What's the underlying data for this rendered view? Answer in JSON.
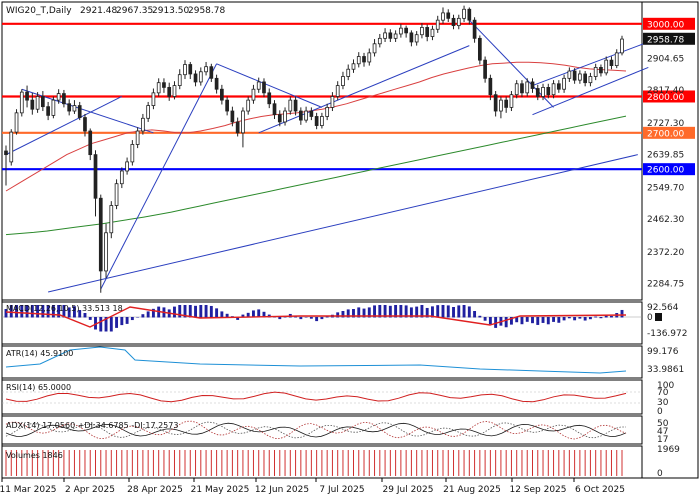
{
  "colors": {
    "bull": "#2a2a2a",
    "bear": "#2a2a2a",
    "support": "#ff0000",
    "s2700": "#ff6a2a",
    "s2600": "#0000ff",
    "ma_red": "#d94040",
    "ma_green": "#2c8a2c",
    "trend_blue": "#2b3fbf",
    "atr": "#1e90d6",
    "rsi": "#d02020",
    "adx": "#1a1a1a",
    "plus_di": "#555555",
    "minus_di": "#b03030",
    "macd_hist": "#2020a0",
    "macd_sig": "#e02020",
    "volume": "#d03030"
  },
  "chart_data": {
    "type": "candlestick",
    "title": "WIG20_T,Daily",
    "ohlc_header": {
      "open": "2921.48",
      "high": "2967.35",
      "low": "2913.50",
      "close": "2958.78"
    },
    "x_labels": [
      "11 Mar 2025",
      "2 Apr 2025",
      "28 Apr 2025",
      "21 May 2025",
      "12 Jun 2025",
      "7 Jul 2025",
      "29 Jul 2025",
      "21 Aug 2025",
      "12 Sep 2025",
      "6 Oct 2025"
    ],
    "ylim": [
      2240,
      3060
    ],
    "y_ticks": [
      "2904.65",
      "2817.40",
      "2727.30",
      "2639.85",
      "2549.70",
      "2462.30",
      "2372.20",
      "2284.75"
    ],
    "horizontal_levels": [
      {
        "label": "3000.00",
        "value": 3000,
        "color": "#ff0000"
      },
      {
        "label": "2800.00",
        "value": 2800,
        "color": "#ff0000"
      },
      {
        "label": "2700.00",
        "value": 2700,
        "color": "#ff6a2a"
      },
      {
        "label": "2600.00",
        "value": 2600,
        "color": "#0000ff"
      }
    ],
    "last_price_label": "2958.78",
    "candles": [
      [
        2650,
        2640,
        2665,
        2555
      ],
      [
        2620,
        2702,
        2710,
        2610
      ],
      [
        2702,
        2755,
        2765,
        2695
      ],
      [
        2755,
        2812,
        2820,
        2745
      ],
      [
        2812,
        2790,
        2830,
        2770
      ],
      [
        2790,
        2765,
        2810,
        2750
      ],
      [
        2765,
        2800,
        2812,
        2755
      ],
      [
        2800,
        2772,
        2815,
        2760
      ],
      [
        2772,
        2748,
        2785,
        2735
      ],
      [
        2748,
        2790,
        2800,
        2740
      ],
      [
        2790,
        2808,
        2820,
        2780
      ],
      [
        2808,
        2780,
        2818,
        2770
      ],
      [
        2780,
        2760,
        2792,
        2748
      ],
      [
        2760,
        2775,
        2790,
        2752
      ],
      [
        2775,
        2742,
        2785,
        2735
      ],
      [
        2742,
        2705,
        2752,
        2690
      ],
      [
        2705,
        2640,
        2712,
        2625
      ],
      [
        2640,
        2520,
        2652,
        2470
      ],
      [
        2520,
        2320,
        2530,
        2260
      ],
      [
        2320,
        2425,
        2450,
        2300
      ],
      [
        2425,
        2500,
        2512,
        2410
      ],
      [
        2500,
        2560,
        2572,
        2490
      ],
      [
        2560,
        2595,
        2605,
        2548
      ],
      [
        2595,
        2620,
        2632,
        2585
      ],
      [
        2620,
        2668,
        2680,
        2610
      ],
      [
        2668,
        2705,
        2715,
        2658
      ],
      [
        2705,
        2740,
        2752,
        2695
      ],
      [
        2740,
        2775,
        2785,
        2730
      ],
      [
        2775,
        2810,
        2822,
        2765
      ],
      [
        2810,
        2838,
        2850,
        2800
      ],
      [
        2838,
        2825,
        2850,
        2810
      ],
      [
        2825,
        2800,
        2838,
        2788
      ],
      [
        2800,
        2830,
        2842,
        2792
      ],
      [
        2830,
        2860,
        2875,
        2820
      ],
      [
        2860,
        2888,
        2900,
        2848
      ],
      [
        2888,
        2862,
        2895,
        2848
      ],
      [
        2862,
        2840,
        2872,
        2828
      ],
      [
        2840,
        2868,
        2880,
        2830
      ],
      [
        2868,
        2882,
        2895,
        2858
      ],
      [
        2882,
        2850,
        2890,
        2840
      ],
      [
        2850,
        2820,
        2860,
        2808
      ],
      [
        2820,
        2790,
        2832,
        2778
      ],
      [
        2790,
        2760,
        2800,
        2748
      ],
      [
        2760,
        2730,
        2772,
        2718
      ],
      [
        2730,
        2700,
        2742,
        2690
      ],
      [
        2700,
        2760,
        2770,
        2660
      ],
      [
        2760,
        2790,
        2800,
        2750
      ],
      [
        2790,
        2820,
        2832,
        2780
      ],
      [
        2820,
        2840,
        2852,
        2810
      ],
      [
        2840,
        2810,
        2850,
        2798
      ],
      [
        2810,
        2780,
        2822,
        2768
      ],
      [
        2780,
        2750,
        2790,
        2738
      ],
      [
        2750,
        2730,
        2762,
        2718
      ],
      [
        2730,
        2760,
        2770,
        2720
      ],
      [
        2760,
        2790,
        2800,
        2750
      ],
      [
        2790,
        2760,
        2800,
        2748
      ],
      [
        2760,
        2735,
        2770,
        2722
      ],
      [
        2735,
        2760,
        2772,
        2728
      ],
      [
        2760,
        2745,
        2770,
        2735
      ],
      [
        2745,
        2720,
        2755,
        2710
      ],
      [
        2720,
        2745,
        2755,
        2712
      ],
      [
        2745,
        2770,
        2780,
        2735
      ],
      [
        2770,
        2800,
        2812,
        2760
      ],
      [
        2800,
        2830,
        2842,
        2790
      ],
      [
        2830,
        2855,
        2868,
        2820
      ],
      [
        2855,
        2875,
        2888,
        2845
      ],
      [
        2875,
        2890,
        2902,
        2865
      ],
      [
        2890,
        2910,
        2922,
        2880
      ],
      [
        2910,
        2895,
        2920,
        2882
      ],
      [
        2895,
        2920,
        2932,
        2885
      ],
      [
        2920,
        2945,
        2958,
        2910
      ],
      [
        2945,
        2960,
        2972,
        2935
      ],
      [
        2960,
        2975,
        2988,
        2950
      ],
      [
        2975,
        2960,
        2985,
        2950
      ],
      [
        2960,
        2972,
        2982,
        2950
      ],
      [
        2972,
        2988,
        3000,
        2962
      ],
      [
        2988,
        2975,
        2995,
        2962
      ],
      [
        2975,
        2950,
        2982,
        2938
      ],
      [
        2950,
        2970,
        2980,
        2940
      ],
      [
        2970,
        2990,
        3002,
        2960
      ],
      [
        2990,
        2965,
        2998,
        2952
      ],
      [
        2965,
        2985,
        2995,
        2955
      ],
      [
        2985,
        3010,
        3022,
        2975
      ],
      [
        3010,
        3030,
        3045,
        3000
      ],
      [
        3030,
        3015,
        3040,
        3005
      ],
      [
        3015,
        2995,
        3025,
        2985
      ],
      [
        2995,
        3015,
        3025,
        2985
      ],
      [
        3015,
        3040,
        3050,
        3005
      ],
      [
        3040,
        3010,
        3045,
        2998
      ],
      [
        3010,
        2960,
        3018,
        2948
      ],
      [
        2960,
        2900,
        2968,
        2888
      ],
      [
        2900,
        2850,
        2910,
        2838
      ],
      [
        2850,
        2805,
        2860,
        2790
      ],
      [
        2805,
        2760,
        2815,
        2745
      ],
      [
        2760,
        2790,
        2800,
        2740
      ],
      [
        2790,
        2770,
        2800,
        2755
      ],
      [
        2770,
        2805,
        2815,
        2760
      ],
      [
        2805,
        2835,
        2845,
        2795
      ],
      [
        2835,
        2810,
        2845,
        2798
      ],
      [
        2810,
        2840,
        2850,
        2800
      ],
      [
        2840,
        2822,
        2850,
        2810
      ],
      [
        2822,
        2800,
        2832,
        2790
      ],
      [
        2800,
        2825,
        2835,
        2790
      ],
      [
        2825,
        2805,
        2835,
        2795
      ],
      [
        2805,
        2835,
        2845,
        2795
      ],
      [
        2835,
        2820,
        2845,
        2810
      ],
      [
        2820,
        2850,
        2860,
        2810
      ],
      [
        2850,
        2870,
        2880,
        2840
      ],
      [
        2870,
        2845,
        2878,
        2835
      ],
      [
        2845,
        2862,
        2872,
        2835
      ],
      [
        2862,
        2838,
        2870,
        2828
      ],
      [
        2838,
        2855,
        2865,
        2828
      ],
      [
        2855,
        2880,
        2890,
        2845
      ],
      [
        2880,
        2865,
        2888,
        2855
      ],
      [
        2865,
        2900,
        2910,
        2858
      ],
      [
        2900,
        2885,
        2910,
        2875
      ],
      [
        2885,
        2920,
        2930,
        2878
      ],
      [
        2920,
        2958,
        2967,
        2913
      ]
    ],
    "ma_red": [
      2540,
      2560,
      2580,
      2600,
      2620,
      2640,
      2655,
      2670,
      2680,
      2690,
      2700,
      2705,
      2708,
      2705,
      2700,
      2700,
      2705,
      2712,
      2720,
      2730,
      2738,
      2745,
      2750,
      2752,
      2755,
      2760,
      2765,
      2772,
      2780,
      2790,
      2800,
      2810,
      2820,
      2830,
      2840,
      2852,
      2862,
      2870,
      2878,
      2885,
      2890,
      2892,
      2894,
      2894,
      2893,
      2890,
      2886,
      2880,
      2876,
      2874,
      2872,
      2870
    ],
    "ma_green": [
      2420,
      2423,
      2426,
      2430,
      2435,
      2440,
      2445,
      2450,
      2456,
      2462,
      2468,
      2475,
      2482,
      2490,
      2498,
      2506,
      2514,
      2522,
      2530,
      2538,
      2546,
      2554,
      2562,
      2570,
      2578,
      2586,
      2594,
      2602,
      2610,
      2618,
      2626,
      2634,
      2642,
      2650,
      2658,
      2666,
      2674,
      2682,
      2690,
      2698,
      2706,
      2714,
      2722,
      2730,
      2738,
      2746
    ],
    "atr_label": "ATR(14) 45.9100",
    "atr_ticks": [
      "99.176",
      "33.9861"
    ],
    "rsi_label": "RSI(14) 65.0000",
    "rsi_ticks": [
      "100",
      "70",
      "30",
      "0"
    ],
    "adx_label": "ADX(14) 17.0560 +DI:34.6785 -DI:17.2573",
    "adx_ticks": [
      "50",
      "47",
      "17"
    ],
    "macd_label": "MACD(12,26,10,5) 33.513 18",
    "macd_ticks": [
      "92.564",
      "0",
      "-136.972"
    ],
    "volume_label": "Volumes 1846",
    "volume_ticks": [
      "1969",
      "0"
    ]
  }
}
